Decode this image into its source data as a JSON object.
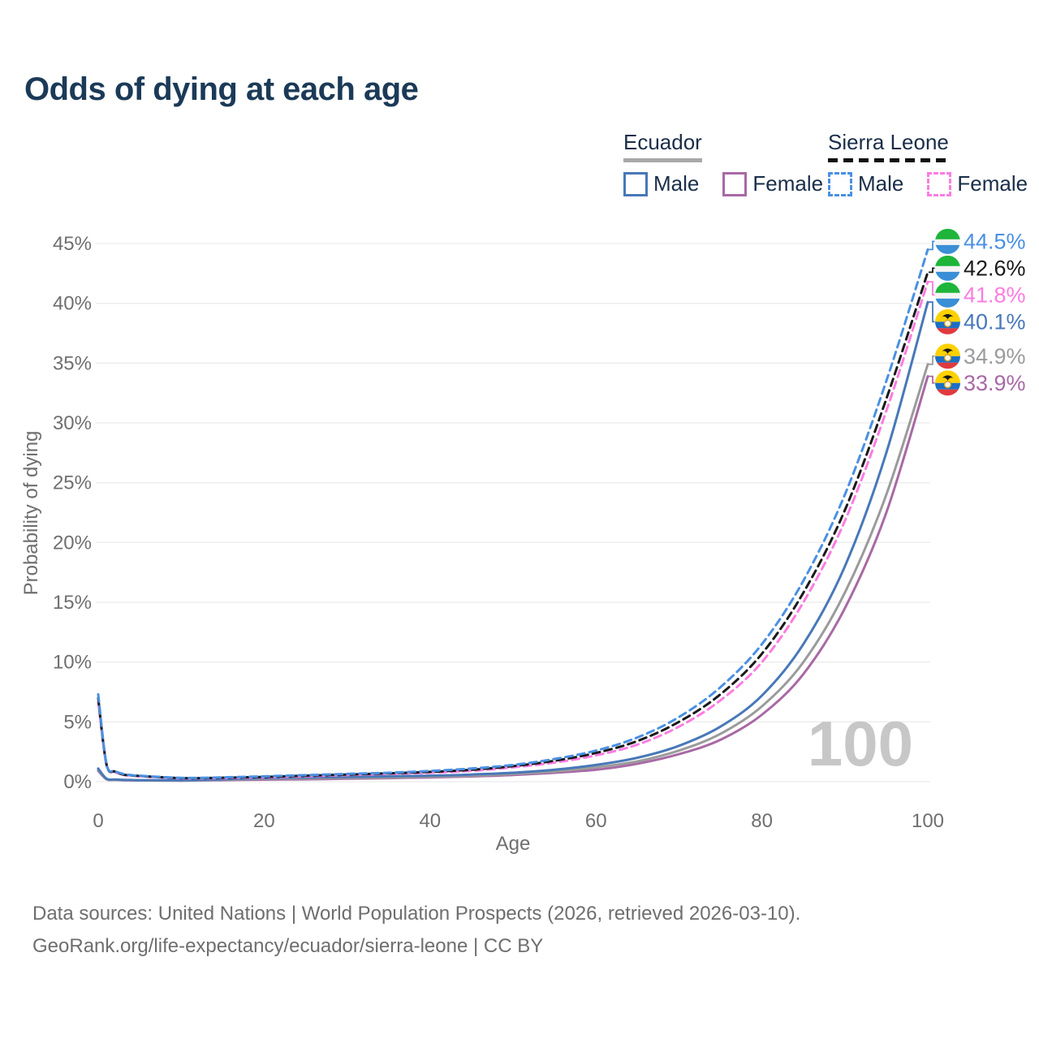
{
  "title": "Odds of dying at each age",
  "legend": {
    "groups": [
      {
        "label": "Ecuador",
        "line_style": "solid",
        "underline_color": "#a8a8a8",
        "items": [
          {
            "label": "Male",
            "color": "#4878b8",
            "dashed": false
          },
          {
            "label": "Female",
            "color": "#a869a5",
            "dashed": false
          }
        ]
      },
      {
        "label": "Sierra Leone",
        "line_style": "dashed",
        "underline_color": "#111111",
        "items": [
          {
            "label": "Male",
            "color": "#4a90e2",
            "dashed": true
          },
          {
            "label": "Female",
            "color": "#fb7ce1",
            "dashed": true
          }
        ]
      }
    ]
  },
  "watermark": "100",
  "footer": {
    "line1": "Data sources: United Nations | World Population Prospects (2026, retrieved 2026-03-10).",
    "line2": "GeoRank.org/life-expectancy/ecuador/sierra-leone | CC BY"
  },
  "colors": {
    "title": "#1b3a57",
    "legend_text": "#1a2e49",
    "axis_text": "#6f6f6f",
    "grid": "#ededed",
    "watermark": "#c7c7c7",
    "footer_text": "#6e6e6e"
  },
  "chart_data": {
    "type": "line",
    "title": "Odds of dying at each age",
    "xlabel": "Age",
    "ylabel": "Probability of dying",
    "xlim": [
      0,
      100
    ],
    "ylim": [
      0,
      45.5
    ],
    "x_ticks": [
      0,
      20,
      40,
      60,
      80,
      100
    ],
    "y_ticks": [
      0,
      5,
      10,
      15,
      20,
      25,
      30,
      35,
      40,
      45
    ],
    "y_tick_suffix": "%",
    "grid": "horizontal-only",
    "legend_position": "top-right",
    "ages": [
      0,
      1,
      2,
      3,
      4,
      5,
      10,
      15,
      20,
      25,
      30,
      35,
      40,
      45,
      50,
      55,
      60,
      65,
      70,
      75,
      80,
      85,
      90,
      95,
      100
    ],
    "series": [
      {
        "name": "Sierra Leone — Male",
        "country": "sierra-leone",
        "sex": "male",
        "color": "#4a90e2",
        "dashed": true,
        "end_label": "44.5%",
        "values": [
          7.3,
          1.5,
          0.9,
          0.65,
          0.55,
          0.5,
          0.32,
          0.36,
          0.45,
          0.55,
          0.65,
          0.75,
          0.9,
          1.1,
          1.4,
          1.9,
          2.6,
          3.7,
          5.4,
          7.9,
          11.5,
          16.8,
          24.0,
          33.5,
          44.5
        ]
      },
      {
        "name": "Sierra Leone — Both sexes",
        "country": "sierra-leone",
        "sex": "both",
        "color": "#1a1a1a",
        "dashed": true,
        "end_label": "42.6%",
        "values": [
          7.0,
          1.45,
          0.85,
          0.6,
          0.52,
          0.48,
          0.3,
          0.33,
          0.4,
          0.5,
          0.6,
          0.7,
          0.82,
          1.0,
          1.3,
          1.75,
          2.4,
          3.4,
          5.0,
          7.3,
          10.7,
          15.8,
          22.7,
          32.0,
          42.6
        ]
      },
      {
        "name": "Sierra Leone — Female",
        "country": "sierra-leone",
        "sex": "female",
        "color": "#fb7ce1",
        "dashed": true,
        "end_label": "41.8%",
        "values": [
          6.7,
          1.4,
          0.82,
          0.58,
          0.5,
          0.45,
          0.28,
          0.3,
          0.36,
          0.45,
          0.55,
          0.65,
          0.75,
          0.9,
          1.2,
          1.6,
          2.2,
          3.1,
          4.6,
          6.8,
          10.0,
          15.0,
          21.8,
          31.0,
          41.8
        ]
      },
      {
        "name": "Ecuador — Male",
        "country": "ecuador",
        "sex": "male",
        "color": "#4878b8",
        "dashed": false,
        "end_label": "40.1%",
        "values": [
          1.1,
          0.25,
          0.18,
          0.15,
          0.14,
          0.13,
          0.12,
          0.2,
          0.3,
          0.35,
          0.4,
          0.45,
          0.5,
          0.6,
          0.75,
          1.0,
          1.4,
          2.0,
          3.0,
          4.6,
          7.2,
          11.5,
          18.0,
          27.5,
          40.1
        ]
      },
      {
        "name": "Ecuador — Both sexes",
        "country": "ecuador",
        "sex": "both",
        "color": "#9b9b9b",
        "dashed": false,
        "end_label": "34.9%",
        "values": [
          1.0,
          0.22,
          0.16,
          0.13,
          0.12,
          0.11,
          0.1,
          0.16,
          0.24,
          0.28,
          0.32,
          0.36,
          0.42,
          0.5,
          0.65,
          0.85,
          1.2,
          1.7,
          2.6,
          4.0,
          6.3,
          10.0,
          15.8,
          24.0,
          34.9
        ]
      },
      {
        "name": "Ecuador — Female",
        "country": "ecuador",
        "sex": "female",
        "color": "#a869a5",
        "dashed": false,
        "end_label": "33.9%",
        "values": [
          0.9,
          0.2,
          0.15,
          0.12,
          0.11,
          0.1,
          0.09,
          0.13,
          0.17,
          0.2,
          0.25,
          0.3,
          0.36,
          0.44,
          0.56,
          0.75,
          1.0,
          1.5,
          2.3,
          3.5,
          5.6,
          9.0,
          14.5,
          22.5,
          33.9
        ]
      }
    ],
    "flag_colors": {
      "sierra-leone": [
        "#1EB53A",
        "#F4F4F4",
        "#3A8FD6"
      ],
      "ecuador": [
        "#FFD100",
        "#1C6FC4",
        "#E03A3E"
      ]
    }
  }
}
